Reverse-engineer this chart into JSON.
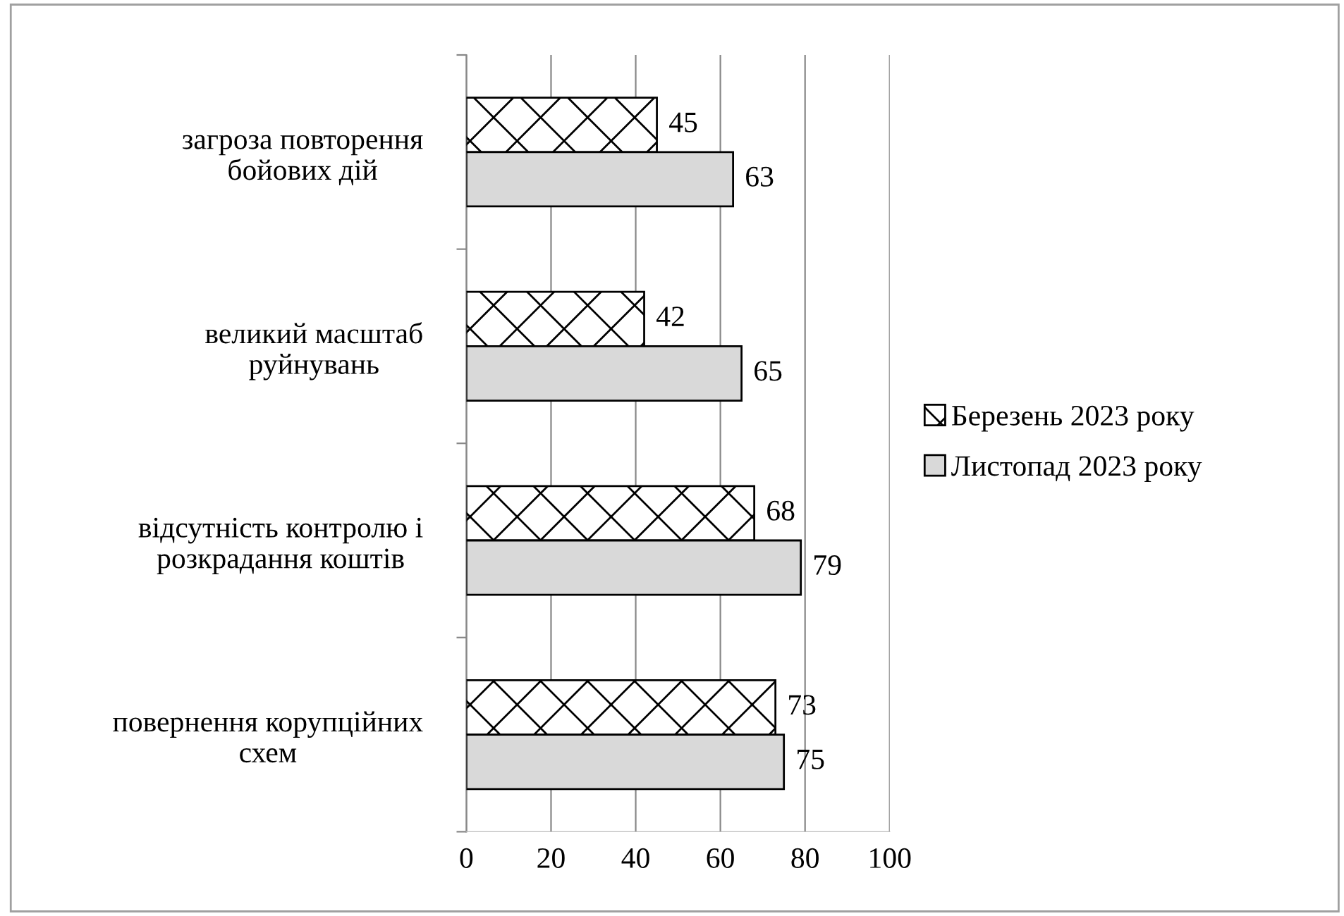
{
  "chart_data": {
    "type": "bar",
    "orientation": "horizontal",
    "categories": [
      "загроза повторення\nбойових дій",
      "великий масштаб\nруйнувань",
      "відсутність контролю і\nрозкрадання коштів",
      "повернення корупційних\nсхем"
    ],
    "series": [
      {
        "name": "Березень 2023 року",
        "color": "#ffffff",
        "values": [
          45,
          42,
          68,
          73
        ]
      },
      {
        "name": "Листопад 2023 року",
        "color": "#d9d9d9",
        "values": [
          63,
          65,
          79,
          75
        ]
      }
    ],
    "xlim": [
      0,
      100
    ],
    "xticks": [
      0,
      20,
      40,
      60,
      80,
      100
    ],
    "grid": "x",
    "legend": "right",
    "data_labels": true
  }
}
